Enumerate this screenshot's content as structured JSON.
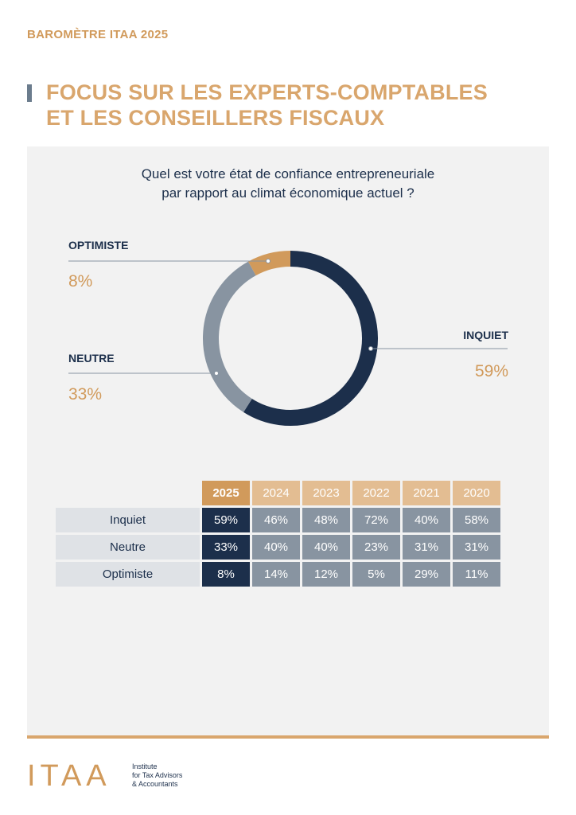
{
  "header": {
    "kicker": "BAROMÈTRE ITAA 2025",
    "title_line1": "FOCUS SUR LES EXPERTS-COMPTABLES",
    "title_line2": "ET LES CONSEILLERS FISCAUX"
  },
  "chart_data": [
    {
      "type": "pie",
      "variant": "donut",
      "title": "Quel est votre état de confiance entrepreneuriale par rapport au climat économique actuel ?",
      "title_line1": "Quel est votre état de confiance entrepreneuriale",
      "title_line2": "par rapport au climat économique actuel ?",
      "slices": [
        {
          "label": "INQUIET",
          "value": 59,
          "value_label": "59%",
          "color": "#1c2f4b"
        },
        {
          "label": "NEUTRE",
          "value": 33,
          "value_label": "33%",
          "color": "#8894a1"
        },
        {
          "label": "OPTIMISTE",
          "value": 8,
          "value_label": "8%",
          "color": "#d19a5b"
        }
      ]
    },
    {
      "type": "table",
      "columns": [
        "2025",
        "2024",
        "2023",
        "2022",
        "2021",
        "2020"
      ],
      "rows": [
        {
          "label": "Inquiet",
          "values": [
            "59%",
            "46%",
            "48%",
            "72%",
            "40%",
            "58%"
          ]
        },
        {
          "label": "Neutre",
          "values": [
            "33%",
            "40%",
            "40%",
            "23%",
            "31%",
            "31%"
          ]
        },
        {
          "label": "Optimiste",
          "values": [
            "8%",
            "14%",
            "12%",
            "5%",
            "29%",
            "11%"
          ]
        }
      ]
    }
  ],
  "footer": {
    "logo_text": "ITAA",
    "logo_line1": "Institute",
    "logo_line2": "for Tax Advisors",
    "logo_line3": "& Accountants"
  },
  "colors": {
    "navy": "#1c2f4b",
    "grey": "#8894a1",
    "gold": "#d19a5b",
    "gold_light": "#e3bd92",
    "panel": "#f2f2f2"
  }
}
